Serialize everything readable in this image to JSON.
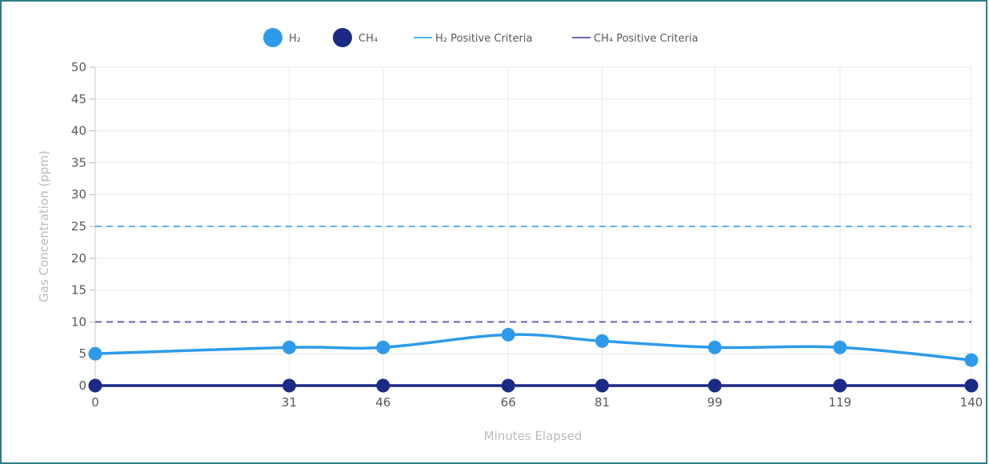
{
  "chart_data": {
    "type": "line",
    "x": [
      0,
      31,
      46,
      66,
      81,
      99,
      119,
      140
    ],
    "x_tick_labels": [
      "0",
      "31",
      "46",
      "66",
      "81",
      "99",
      "119",
      "140"
    ],
    "y_ticks": [
      0,
      5,
      10,
      15,
      20,
      25,
      30,
      35,
      40,
      45,
      50
    ],
    "ylim": [
      0,
      50
    ],
    "xlabel": "Minutes Elapsed",
    "ylabel": "Gas Concentration (ppm)",
    "grid": true,
    "legend_position": "top-center",
    "series": [
      {
        "name": "H₂",
        "values": [
          5,
          6,
          6,
          8,
          7,
          6,
          6,
          4
        ],
        "color": "#2e9bea"
      },
      {
        "name": "CH₄",
        "values": [
          0,
          0,
          0,
          0,
          0,
          0,
          0,
          0
        ],
        "color": "#1b2a86"
      }
    ],
    "thresholds": [
      {
        "name": "H₂ Positive Criteria",
        "value": 25,
        "color": "#5ab4ee"
      },
      {
        "name": "CH₄ Positive Criteria",
        "value": 10,
        "color": "#6b63b5"
      }
    ]
  }
}
